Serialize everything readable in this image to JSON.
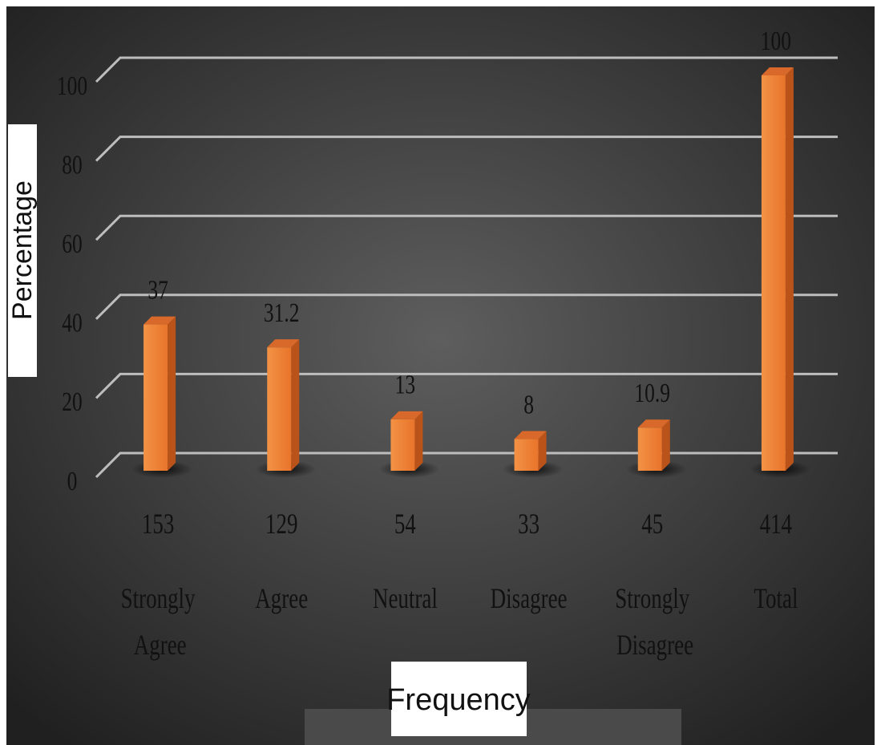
{
  "chart_data": {
    "type": "bar3d",
    "y_axis_label": "Percentage",
    "x_axis_label": "Frequency",
    "categories": [
      "Strongly Agree",
      "Agree",
      "Neutral",
      "Disagree",
      "Strongly Disagree",
      "Total"
    ],
    "counts": [
      153,
      129,
      54,
      33,
      45,
      414
    ],
    "values": [
      37,
      31.2,
      13,
      8,
      10.9,
      100
    ],
    "color": "#f07f2c",
    "ylim": [
      0,
      100
    ],
    "yticks": [
      0,
      20,
      40,
      60,
      80,
      100
    ],
    "grid": true
  }
}
